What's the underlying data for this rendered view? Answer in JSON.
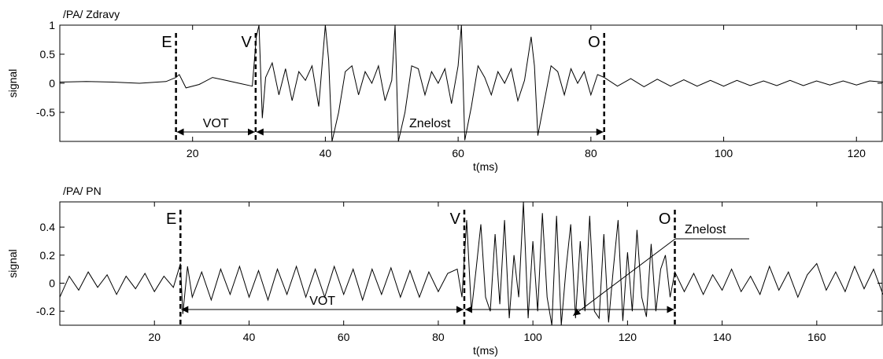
{
  "chart_data": [
    {
      "type": "line",
      "title": "/PA/ Zdravy",
      "xlabel": "t(ms)",
      "ylabel": "signal",
      "xlim": [
        0,
        124
      ],
      "ylim": [
        -1,
        1
      ],
      "xticks": [
        20,
        40,
        60,
        80,
        100,
        120
      ],
      "yticks": [
        -0.5,
        0,
        0.5,
        1
      ],
      "ytick_labels": [
        "-0.5",
        "0",
        "0.5",
        "1"
      ],
      "grid": false,
      "color": "#000000",
      "series": [
        {
          "x": [
            0,
            4,
            8,
            12,
            16,
            17.5,
            18,
            19,
            21,
            23,
            25,
            27,
            29,
            29.6,
            30,
            30.5,
            31,
            32,
            33,
            34,
            35,
            36,
            37,
            38,
            39,
            40,
            40.5,
            41,
            42,
            43,
            44,
            45,
            46,
            47,
            48,
            49,
            50,
            50.5,
            51,
            52,
            53,
            54,
            55,
            56,
            57,
            58,
            59,
            60,
            60.5,
            61,
            62,
            63,
            64,
            65,
            66,
            67,
            68,
            69,
            70,
            71,
            71.5,
            72,
            73,
            74,
            75,
            76,
            77,
            78,
            79,
            80,
            81,
            82,
            84,
            86,
            88,
            90,
            92,
            94,
            96,
            98,
            100,
            102,
            104,
            106,
            108,
            110,
            112,
            114,
            116,
            118,
            120,
            122,
            124
          ],
          "y": [
            0.02,
            0.03,
            0.02,
            0.0,
            0.03,
            0.1,
            0.15,
            -0.08,
            -0.02,
            0.1,
            0.05,
            0.0,
            -0.05,
            0.8,
            1.0,
            -0.6,
            0.1,
            0.35,
            -0.2,
            0.25,
            -0.3,
            0.2,
            0.05,
            0.3,
            -0.4,
            1.0,
            0.4,
            -1.0,
            -0.5,
            0.2,
            0.3,
            -0.2,
            0.2,
            0.0,
            0.3,
            -0.3,
            0.05,
            1.0,
            -1.0,
            -0.5,
            0.3,
            0.25,
            -0.2,
            0.2,
            0.0,
            0.25,
            -0.35,
            0.3,
            1.0,
            -0.98,
            -0.4,
            0.3,
            0.1,
            -0.2,
            0.2,
            0.0,
            0.25,
            -0.3,
            0.05,
            0.8,
            0.3,
            -0.9,
            -0.3,
            0.3,
            0.2,
            -0.2,
            0.25,
            0.0,
            0.2,
            -0.2,
            0.15,
            0.1,
            -0.05,
            0.08,
            -0.06,
            0.07,
            -0.05,
            0.06,
            -0.05,
            0.05,
            -0.05,
            0.05,
            -0.04,
            0.04,
            -0.04,
            0.05,
            -0.04,
            0.04,
            -0.03,
            0.04,
            -0.03,
            0.04,
            0.02
          ]
        }
      ],
      "markers": [
        {
          "label": "E",
          "x": 17.5
        },
        {
          "label": "V",
          "x": 29.5
        },
        {
          "label": "O",
          "x": 82
        }
      ],
      "spans": [
        {
          "label": "VOT",
          "from": 17.5,
          "to": 29.5
        },
        {
          "label": "Znelost",
          "from": 29.5,
          "to": 82
        }
      ]
    },
    {
      "type": "line",
      "title": "/PA/ PN",
      "xlabel": "t(ms)",
      "ylabel": "signal",
      "xlim": [
        0,
        174
      ],
      "ylim": [
        -0.3,
        0.58
      ],
      "xticks": [
        20,
        40,
        60,
        80,
        100,
        120,
        140,
        160
      ],
      "yticks": [
        -0.2,
        0,
        0.2,
        0.4
      ],
      "ytick_labels": [
        "-0.2",
        "0",
        "0.2",
        "0.4"
      ],
      "grid": false,
      "color": "#000000",
      "series": [
        {
          "x": [
            0,
            2,
            4,
            6,
            8,
            10,
            12,
            14,
            16,
            18,
            20,
            22,
            24,
            25.5,
            26,
            27,
            28,
            30,
            32,
            34,
            36,
            38,
            40,
            42,
            44,
            46,
            48,
            50,
            52,
            54,
            56,
            58,
            60,
            62,
            64,
            66,
            68,
            70,
            72,
            74,
            76,
            78,
            80,
            82,
            84,
            85,
            86,
            87,
            88,
            89,
            90,
            91,
            92,
            93,
            94,
            95,
            96,
            97,
            98,
            99,
            100,
            101,
            102,
            103,
            104,
            105,
            106,
            107,
            108,
            109,
            110,
            111,
            112,
            113,
            114,
            115,
            116,
            117,
            118,
            119,
            120,
            121,
            122,
            123,
            124,
            125,
            126,
            127,
            128,
            129,
            130,
            132,
            134,
            136,
            138,
            140,
            142,
            144,
            146,
            148,
            150,
            152,
            154,
            156,
            158,
            160,
            162,
            164,
            166,
            168,
            170,
            172,
            174
          ],
          "y": [
            -0.1,
            0.05,
            -0.05,
            0.08,
            -0.03,
            0.06,
            -0.08,
            0.05,
            -0.04,
            0.07,
            -0.06,
            0.05,
            -0.03,
            0.14,
            -0.22,
            0.12,
            -0.1,
            0.08,
            -0.12,
            0.1,
            -0.08,
            0.12,
            -0.1,
            0.09,
            -0.12,
            0.1,
            -0.08,
            0.12,
            -0.1,
            0.1,
            -0.1,
            0.12,
            -0.08,
            0.1,
            -0.12,
            0.1,
            -0.08,
            0.11,
            -0.1,
            0.09,
            -0.1,
            0.08,
            -0.06,
            0.07,
            0.1,
            -0.1,
            0.45,
            -0.2,
            0.1,
            0.42,
            -0.1,
            -0.2,
            0.35,
            -0.15,
            0.45,
            -0.25,
            0.2,
            -0.1,
            0.58,
            -0.25,
            0.3,
            -0.2,
            0.5,
            -0.1,
            -0.3,
            0.48,
            -0.3,
            0.1,
            0.42,
            -0.25,
            0.3,
            -0.2,
            0.48,
            -0.2,
            -0.25,
            0.35,
            -0.28,
            0.1,
            0.45,
            -0.27,
            0.22,
            -0.2,
            0.38,
            -0.1,
            -0.24,
            0.28,
            -0.2,
            0.1,
            0.2,
            -0.1,
            0.08,
            -0.06,
            0.07,
            -0.08,
            0.06,
            -0.05,
            0.1,
            -0.06,
            0.05,
            -0.08,
            0.12,
            -0.05,
            0.08,
            -0.1,
            0.06,
            0.14,
            -0.05,
            0.08,
            -0.06,
            0.12,
            -0.04,
            0.1,
            -0.08
          ]
        }
      ],
      "markers": [
        {
          "label": "E",
          "x": 25.5
        },
        {
          "label": "V",
          "x": 85.5
        },
        {
          "label": "O",
          "x": 130
        }
      ],
      "spans": [
        {
          "label": "VOT",
          "from": 25.5,
          "to": 85.5
        },
        {
          "label": "",
          "from": 85.5,
          "to": 130
        }
      ],
      "annotation": {
        "label": "Znelost",
        "x": 108.5,
        "y": -0.22
      }
    }
  ]
}
